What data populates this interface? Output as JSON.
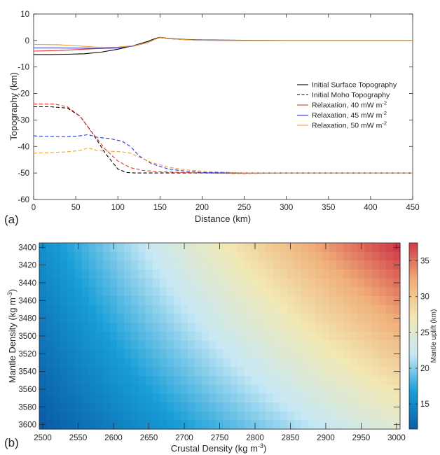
{
  "chart_data": [
    {
      "type": "line",
      "panel_label": "(a)",
      "xlabel": "Distance (km)",
      "ylabel": "Topography (km)",
      "xlim": [
        0,
        450
      ],
      "ylim": [
        -60,
        10
      ],
      "xticks": [
        0,
        50,
        100,
        150,
        200,
        250,
        300,
        350,
        400,
        450
      ],
      "yticks": [
        10,
        0,
        -10,
        -20,
        -30,
        -40,
        -50,
        -60
      ],
      "grid": false,
      "legend_position": "right",
      "legend": [
        {
          "label": "Initial Surface Topography",
          "suffix": "",
          "color": "#000000",
          "dash": false
        },
        {
          "label": "Initial Moho Topography",
          "suffix": "",
          "color": "#000000",
          "dash": true
        },
        {
          "label": "Relaxation, 40 mW m",
          "suffix": "-2",
          "color": "#e8312a",
          "dash": false
        },
        {
          "label": "Relaxation, 45 mW m",
          "suffix": "-2",
          "color": "#2a36d6",
          "dash": false
        },
        {
          "label": "Relaxation, 50 mW m",
          "suffix": "-2",
          "color": "#f0a030",
          "dash": false
        }
      ],
      "series": [
        {
          "color": "#000000",
          "dash": false,
          "x": [
            0,
            20,
            40,
            60,
            80,
            100,
            120,
            135,
            145,
            150,
            160,
            180,
            200,
            250,
            300,
            450
          ],
          "y": [
            -5.3,
            -5.3,
            -5.2,
            -5.0,
            -4.4,
            -3.3,
            -1.8,
            -0.4,
            0.8,
            1.2,
            0.8,
            0.4,
            0.2,
            0.1,
            0.0,
            0.0
          ]
        },
        {
          "color": "#e8312a",
          "dash": false,
          "x": [
            0,
            30,
            60,
            80,
            100,
            120,
            135,
            145,
            150,
            160,
            180,
            200,
            250,
            300,
            450
          ],
          "y": [
            -4.0,
            -3.8,
            -3.3,
            -3.0,
            -2.7,
            -2.0,
            -0.8,
            0.6,
            1.1,
            0.7,
            0.3,
            0.1,
            0.0,
            0.0,
            0.0
          ]
        },
        {
          "color": "#2a36d6",
          "dash": false,
          "x": [
            0,
            30,
            60,
            80,
            100,
            120,
            135,
            145,
            150,
            160,
            180,
            200,
            250,
            300,
            450
          ],
          "y": [
            -2.8,
            -2.8,
            -2.9,
            -3.0,
            -2.8,
            -2.0,
            -0.8,
            0.6,
            1.1,
            0.7,
            0.3,
            0.1,
            0.0,
            0.0,
            0.0
          ]
        },
        {
          "color": "#f0a030",
          "dash": false,
          "x": [
            0,
            30,
            60,
            80,
            100,
            120,
            135,
            145,
            150,
            160,
            180,
            200,
            250,
            300,
            450
          ],
          "y": [
            -1.5,
            -1.6,
            -2.2,
            -2.6,
            -2.5,
            -1.9,
            -0.8,
            0.6,
            1.1,
            0.7,
            0.3,
            0.1,
            0.0,
            0.0,
            0.0
          ]
        },
        {
          "color": "#000000",
          "dash": true,
          "x": [
            0,
            20,
            40,
            55,
            70,
            85,
            100,
            110,
            120,
            150,
            200,
            300,
            450
          ],
          "y": [
            -25,
            -25,
            -25.5,
            -28.5,
            -35,
            -42.5,
            -48.5,
            -49.8,
            -50,
            -50,
            -50,
            -50,
            -50
          ]
        },
        {
          "color": "#e8312a",
          "dash": true,
          "x": [
            0,
            25,
            40,
            55,
            70,
            85,
            100,
            115,
            130,
            150,
            175,
            200,
            250,
            300,
            450
          ],
          "y": [
            -24,
            -24,
            -25,
            -28.5,
            -35,
            -41,
            -45.5,
            -48,
            -49,
            -49.5,
            -49.8,
            -50,
            -50.2,
            -50,
            -50
          ]
        },
        {
          "color": "#2a36d6",
          "dash": true,
          "x": [
            0,
            20,
            40,
            55,
            65,
            75,
            90,
            105,
            115,
            125,
            140,
            160,
            180,
            200,
            250,
            300,
            450
          ],
          "y": [
            -36,
            -36.2,
            -36.3,
            -36,
            -35.5,
            -36.5,
            -37,
            -38,
            -40,
            -43.5,
            -46.5,
            -48.5,
            -49.3,
            -49.8,
            -50,
            -50,
            -50
          ]
        },
        {
          "color": "#f0a030",
          "dash": true,
          "x": [
            0,
            20,
            40,
            55,
            65,
            75,
            90,
            105,
            115,
            125,
            140,
            160,
            180,
            200,
            250,
            300,
            450
          ],
          "y": [
            -42.5,
            -42.3,
            -42,
            -41.5,
            -40.5,
            -41.5,
            -41.8,
            -42,
            -42.5,
            -44,
            -46,
            -47.8,
            -48.8,
            -49.3,
            -50,
            -50,
            -50
          ]
        }
      ]
    },
    {
      "type": "heatmap",
      "panel_label": "(b)",
      "xlabel": "Crustal Density (kg m",
      "xlabel_sup": "-3",
      "xlabel_end": ")",
      "ylabel": "Mantle Density (kg m",
      "ylabel_sup": "-3",
      "ylabel_end": ")",
      "xlim": [
        2500,
        3000
      ],
      "ylim": [
        3400,
        3600
      ],
      "xticks": [
        2500,
        2550,
        2600,
        2650,
        2700,
        2750,
        2800,
        2850,
        2900,
        2950,
        3000
      ],
      "yticks": [
        3400,
        3420,
        3440,
        3460,
        3480,
        3500,
        3520,
        3540,
        3560,
        3580,
        3600
      ],
      "x_steps": 51,
      "y_steps": 21,
      "colorbar": {
        "label": "Mantle uplift (km)",
        "range": [
          11.5,
          37.5
        ],
        "ticks": [
          15,
          20,
          25,
          30,
          35
        ],
        "colormap": [
          "#0a5ea8",
          "#179ed8",
          "#c6e8f5",
          "#f2e8b4",
          "#f0ae78",
          "#d03a48"
        ]
      },
      "value_corners": {
        "x2500_y3400": 15.5,
        "x3000_y3400": 37.5,
        "x2500_y3600": 11.5,
        "x3000_y3600": 25.0
      }
    }
  ]
}
